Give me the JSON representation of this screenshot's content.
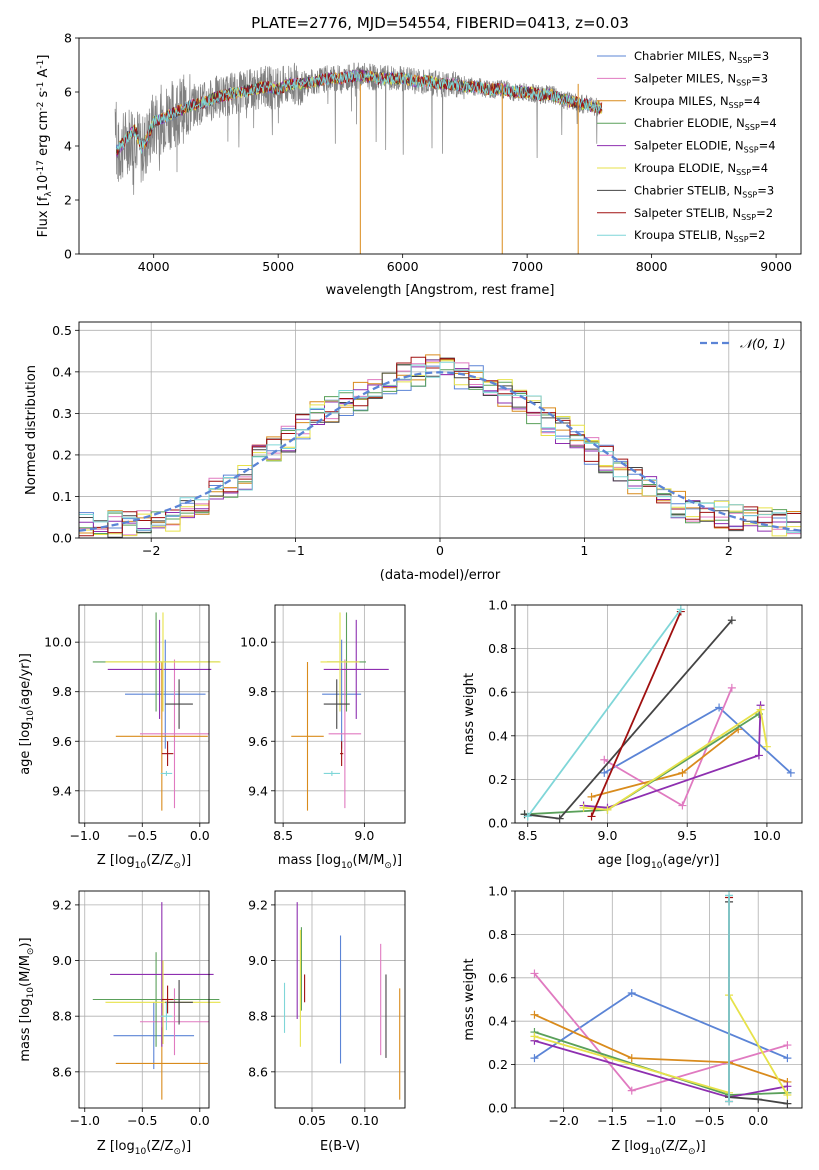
{
  "colors": {
    "Chabrier MILES": "#5b84d6",
    "Salpeter MILES": "#e07ac0",
    "Kroupa MILES": "#d98b1c",
    "Chabrier ELODIE": "#5aa05a",
    "Salpeter ELODIE": "#8e2fb0",
    "Kroupa ELODIE": "#e7e24a",
    "Chabrier STELIB": "#444444",
    "Salpeter STELIB": "#a01010",
    "Kroupa STELIB": "#7fd6d8",
    "gauss": "#5b84d6"
  },
  "chart_data": [
    {
      "id": "spectrum",
      "type": "line",
      "title": "PLATE=2776, MJD=54554, FIBERID=0413, z=0.03",
      "xlabel": "wavelength [Angstrom, rest frame]",
      "ylabel": "Flux [f$_\\lambda$10$^{-17}$ erg cm$^{-2}$ s$^{-1}$ A$^{-1}$]",
      "xlim": [
        3400,
        9200
      ],
      "ylim": [
        0,
        8
      ],
      "xticks": [
        "4000",
        "5000",
        "6000",
        "7000",
        "8000",
        "9000"
      ],
      "yticks": [
        "0",
        "2",
        "4",
        "6",
        "8"
      ],
      "legend_position": "upper-right",
      "legend": [
        {
          "model": "Chabrier MILES",
          "label": "Chabrier MILES, N",
          "sub": "SSP",
          "suffix": "=3"
        },
        {
          "model": "Salpeter MILES",
          "label": "Salpeter MILES, N",
          "sub": "SSP",
          "suffix": "=3"
        },
        {
          "model": "Kroupa MILES",
          "label": "Kroupa MILES, N",
          "sub": "SSP",
          "suffix": "=4"
        },
        {
          "model": "Chabrier ELODIE",
          "label": "Chabrier ELODIE, N",
          "sub": "SSP",
          "suffix": "=4"
        },
        {
          "model": "Salpeter ELODIE",
          "label": "Salpeter ELODIE, N",
          "sub": "SSP",
          "suffix": "=4"
        },
        {
          "model": "Kroupa ELODIE",
          "label": "Kroupa ELODIE, N",
          "sub": "SSP",
          "suffix": "=4"
        },
        {
          "model": "Chabrier STELIB",
          "label": "Chabrier STELIB, N",
          "sub": "SSP",
          "suffix": "=3"
        },
        {
          "model": "Salpeter STELIB",
          "label": "Salpeter STELIB, N",
          "sub": "SSP",
          "suffix": "=2"
        },
        {
          "model": "Kroupa STELIB",
          "label": "Kroupa STELIB, N",
          "sub": "SSP",
          "suffix": "=2"
        }
      ],
      "data_color": "#808080",
      "data": {
        "x": [
          3700,
          3750,
          3800,
          3850,
          3900,
          3950,
          4000,
          4100,
          4200,
          4300,
          4400,
          4500,
          4600,
          4700,
          4800,
          4900,
          5000,
          5100,
          5200,
          5300,
          5400,
          5500,
          5600,
          5700,
          5800,
          5900,
          6000,
          6100,
          6200,
          6300,
          6400,
          6500,
          6600,
          6700,
          6800,
          6900,
          7000,
          7100,
          7200,
          7300,
          7400,
          7500,
          7600
        ],
        "y": [
          3.5,
          4.0,
          4.3,
          4.5,
          3.8,
          4.2,
          4.8,
          5.1,
          5.3,
          5.5,
          5.6,
          5.8,
          5.9,
          6.0,
          6.1,
          6.2,
          6.1,
          6.3,
          6.3,
          6.4,
          6.5,
          6.5,
          6.6,
          6.6,
          6.5,
          6.5,
          6.5,
          6.4,
          6.4,
          6.3,
          6.3,
          6.2,
          6.2,
          6.1,
          6.1,
          6.0,
          6.0,
          5.9,
          5.9,
          5.7,
          5.6,
          5.5,
          5.4
        ]
      },
      "model_curve": {
        "x": [
          3700,
          3750,
          3800,
          3850,
          3900,
          3950,
          4000,
          4100,
          4200,
          4300,
          4400,
          4500,
          4600,
          4700,
          4800,
          4900,
          5000,
          5100,
          5200,
          5300,
          5400,
          5500,
          5600,
          5700,
          5800,
          5900,
          6000,
          6100,
          6200,
          6300,
          6400,
          6500,
          6600,
          6700,
          6800,
          6900,
          7000,
          7100,
          7200,
          7300,
          7400,
          7500,
          7600
        ],
        "y": [
          3.8,
          4.1,
          4.4,
          4.6,
          3.9,
          4.3,
          4.9,
          5.1,
          5.3,
          5.5,
          5.6,
          5.8,
          5.9,
          6.0,
          6.1,
          6.2,
          6.1,
          6.3,
          6.3,
          6.4,
          6.5,
          6.5,
          6.6,
          6.6,
          6.5,
          6.5,
          6.5,
          6.4,
          6.4,
          6.3,
          6.3,
          6.2,
          6.2,
          6.1,
          6.1,
          6.0,
          6.0,
          5.9,
          5.9,
          5.7,
          5.6,
          5.5,
          5.4
        ]
      }
    },
    {
      "id": "residuals",
      "type": "step",
      "xlabel": "(data-model)/error",
      "ylabel": "Normed distribution",
      "xlim": [
        -2.5,
        2.5
      ],
      "ylim": [
        0,
        0.52
      ],
      "xticks": [
        "−2",
        "−1",
        "0",
        "1",
        "2"
      ],
      "yticks": [
        "0.0",
        "0.1",
        "0.2",
        "0.3",
        "0.4",
        "0.5"
      ],
      "legend_position": "upper-right",
      "gauss_label": "𝒩(0, 1)",
      "bins_start": -2.5,
      "bin_width": 0.1,
      "hist": [
        0.03,
        0.025,
        0.035,
        0.03,
        0.04,
        0.045,
        0.05,
        0.08,
        0.09,
        0.11,
        0.13,
        0.15,
        0.2,
        0.22,
        0.24,
        0.27,
        0.3,
        0.31,
        0.33,
        0.34,
        0.37,
        0.38,
        0.39,
        0.4,
        0.41,
        0.4,
        0.39,
        0.38,
        0.37,
        0.35,
        0.33,
        0.31,
        0.28,
        0.26,
        0.24,
        0.21,
        0.19,
        0.17,
        0.14,
        0.12,
        0.1,
        0.08,
        0.07,
        0.06,
        0.055,
        0.05,
        0.045,
        0.04,
        0.035,
        0.03
      ]
    },
    {
      "id": "age_Z",
      "type": "errorbar",
      "xlabel": "Z [log$_{10}$($Z/Z_\\odot$)]",
      "ylabel": "age  [log$_{10}$($age/yr$)]",
      "xlim": [
        -1.05,
        0.08
      ],
      "ylim": [
        9.27,
        10.15
      ],
      "xticks": [
        "−1.0",
        "−0.5",
        "0.0"
      ],
      "yticks": [
        "9.4",
        "9.6",
        "9.8",
        "10.0"
      ],
      "points": [
        {
          "model": "Chabrier MILES",
          "x": -0.3,
          "y": 9.79,
          "xerr": 0.35,
          "yerr": 0.22
        },
        {
          "model": "Salpeter MILES",
          "x": -0.22,
          "y": 9.63,
          "xerr": 0.3,
          "yerr": 0.3
        },
        {
          "model": "Kroupa MILES",
          "x": -0.33,
          "y": 9.62,
          "xerr": 0.4,
          "yerr": 0.3
        },
        {
          "model": "Chabrier ELODIE",
          "x": -0.38,
          "y": 9.92,
          "xerr": 0.55,
          "yerr": 0.2
        },
        {
          "model": "Salpeter ELODIE",
          "x": -0.35,
          "y": 9.89,
          "xerr": 0.45,
          "yerr": 0.2
        },
        {
          "model": "Kroupa ELODIE",
          "x": -0.32,
          "y": 9.92,
          "xerr": 0.5,
          "yerr": 0.2
        },
        {
          "model": "Chabrier STELIB",
          "x": -0.18,
          "y": 9.75,
          "xerr": 0.12,
          "yerr": 0.1
        },
        {
          "model": "Salpeter STELIB",
          "x": -0.28,
          "y": 9.55,
          "xerr": 0.05,
          "yerr": 0.05
        },
        {
          "model": "Kroupa STELIB",
          "x": -0.29,
          "y": 9.47,
          "xerr": 0.05,
          "yerr": 0.01
        }
      ]
    },
    {
      "id": "age_mass",
      "type": "errorbar",
      "xlabel": "mass [log$_{10}$($M/M_\\odot$)]",
      "ylabel": "",
      "xlim": [
        8.45,
        9.25
      ],
      "ylim": [
        9.27,
        10.15
      ],
      "xticks": [
        "8.5",
        "9.0"
      ],
      "yticks": [
        "9.4",
        "9.6",
        "9.8",
        "10.0"
      ],
      "points": [
        {
          "model": "Chabrier MILES",
          "x": 8.86,
          "y": 9.79,
          "xerr": 0.12,
          "yerr": 0.22
        },
        {
          "model": "Salpeter MILES",
          "x": 8.88,
          "y": 9.63,
          "xerr": 0.1,
          "yerr": 0.3
        },
        {
          "model": "Kroupa MILES",
          "x": 8.65,
          "y": 9.62,
          "xerr": 0.1,
          "yerr": 0.3
        },
        {
          "model": "Chabrier ELODIE",
          "x": 8.89,
          "y": 9.92,
          "xerr": 0.12,
          "yerr": 0.2
        },
        {
          "model": "Salpeter ELODIE",
          "x": 8.95,
          "y": 9.89,
          "xerr": 0.2,
          "yerr": 0.2
        },
        {
          "model": "Kroupa ELODIE",
          "x": 8.85,
          "y": 9.92,
          "xerr": 0.12,
          "yerr": 0.2
        },
        {
          "model": "Chabrier STELIB",
          "x": 8.83,
          "y": 9.75,
          "xerr": 0.08,
          "yerr": 0.1
        },
        {
          "model": "Salpeter STELIB",
          "x": 8.86,
          "y": 9.55,
          "xerr": 0.01,
          "yerr": 0.05
        },
        {
          "model": "Kroupa STELIB",
          "x": 8.8,
          "y": 9.47,
          "xerr": 0.05,
          "yerr": 0.01
        }
      ]
    },
    {
      "id": "weight_age",
      "type": "line",
      "xlabel": "age  [log$_{10}$($age/yr$)]",
      "ylabel": "mass weight",
      "xlim": [
        8.42,
        10.22
      ],
      "ylim": [
        0,
        1
      ],
      "xticks": [
        "8.5",
        "9.0",
        "9.5",
        "10.0"
      ],
      "yticks": [
        "0.0",
        "0.2",
        "0.4",
        "0.6",
        "0.8",
        "1.0"
      ],
      "series": [
        {
          "model": "Chabrier MILES",
          "x": [
            8.98,
            9.7,
            10.15
          ],
          "y": [
            0.23,
            0.53,
            0.23
          ]
        },
        {
          "model": "Salpeter MILES",
          "x": [
            8.98,
            9.47,
            9.78
          ],
          "y": [
            0.29,
            0.08,
            0.62
          ]
        },
        {
          "model": "Kroupa MILES",
          "x": [
            8.9,
            9.47,
            9.82
          ],
          "y": [
            0.12,
            0.23,
            0.43
          ]
        },
        {
          "model": "Chabrier ELODIE",
          "x": [
            8.48,
            9.0,
            9.95
          ],
          "y": [
            0.04,
            0.06,
            0.5
          ]
        },
        {
          "model": "Salpeter ELODIE",
          "x": [
            8.85,
            9.0,
            9.95,
            9.96
          ],
          "y": [
            0.08,
            0.07,
            0.31,
            0.54
          ]
        },
        {
          "model": "Kroupa ELODIE",
          "x": [
            8.85,
            9.0,
            9.96,
            10.0
          ],
          "y": [
            0.07,
            0.06,
            0.52,
            0.35
          ]
        },
        {
          "model": "Chabrier STELIB",
          "x": [
            8.48,
            8.7,
            9.78
          ],
          "y": [
            0.04,
            0.02,
            0.93
          ]
        },
        {
          "model": "Salpeter STELIB",
          "x": [
            8.9,
            9.46
          ],
          "y": [
            0.03,
            0.97
          ]
        },
        {
          "model": "Kroupa STELIB",
          "x": [
            8.5,
            9.46
          ],
          "y": [
            0.03,
            0.98
          ]
        }
      ]
    },
    {
      "id": "mass_Z",
      "type": "errorbar",
      "xlabel": "Z [log$_{10}$($Z/Z_\\odot$)]",
      "ylabel": "mass [log$_{10}$($M/M_\\odot$)]",
      "xlim": [
        -1.05,
        0.08
      ],
      "ylim": [
        8.47,
        9.25
      ],
      "xticks": [
        "−1.0",
        "−0.5",
        "0.0"
      ],
      "yticks": [
        "8.6",
        "8.8",
        "9.0",
        "9.2"
      ],
      "points": [
        {
          "model": "Chabrier MILES",
          "x": -0.4,
          "y": 8.73,
          "xerr": 0.35,
          "yerr": 0.12
        },
        {
          "model": "Salpeter MILES",
          "x": -0.22,
          "y": 8.78,
          "xerr": 0.3,
          "yerr": 0.12
        },
        {
          "model": "Kroupa MILES",
          "x": -0.33,
          "y": 8.63,
          "xerr": 0.4,
          "yerr": 0.13
        },
        {
          "model": "Chabrier ELODIE",
          "x": -0.38,
          "y": 8.86,
          "xerr": 0.55,
          "yerr": 0.17
        },
        {
          "model": "Salpeter ELODIE",
          "x": -0.33,
          "y": 8.95,
          "xerr": 0.45,
          "yerr": 0.26
        },
        {
          "model": "Kroupa ELODIE",
          "x": -0.32,
          "y": 8.85,
          "xerr": 0.5,
          "yerr": 0.15
        },
        {
          "model": "Chabrier STELIB",
          "x": -0.18,
          "y": 8.85,
          "xerr": 0.12,
          "yerr": 0.08
        },
        {
          "model": "Salpeter STELIB",
          "x": -0.28,
          "y": 8.86,
          "xerr": 0.05,
          "yerr": 0.05
        },
        {
          "model": "Kroupa STELIB",
          "x": -0.29,
          "y": 8.8,
          "xerr": 0.05,
          "yerr": 0.05
        }
      ]
    },
    {
      "id": "mass_ebv",
      "type": "errorbar",
      "xlabel": "E(B-V)",
      "ylabel": "",
      "xlim": [
        0.015,
        0.138
      ],
      "ylim": [
        8.47,
        9.25
      ],
      "xticks": [
        "0.05",
        "0.10"
      ],
      "yticks": [
        "8.6",
        "8.8",
        "9.0",
        "9.2"
      ],
      "points": [
        {
          "model": "Chabrier MILES",
          "x": 0.077,
          "y": 8.86,
          "xerr": 0,
          "yerr": 0.23
        },
        {
          "model": "Salpeter MILES",
          "x": 0.115,
          "y": 8.86,
          "xerr": 0,
          "yerr": 0.2
        },
        {
          "model": "Kroupa MILES",
          "x": 0.133,
          "y": 8.7,
          "xerr": 0,
          "yerr": 0.2
        },
        {
          "model": "Chabrier ELODIE",
          "x": 0.04,
          "y": 8.97,
          "xerr": 0,
          "yerr": 0.15
        },
        {
          "model": "Salpeter ELODIE",
          "x": 0.036,
          "y": 9.0,
          "xerr": 0,
          "yerr": 0.21
        },
        {
          "model": "Kroupa ELODIE",
          "x": 0.039,
          "y": 8.9,
          "xerr": 0,
          "yerr": 0.21
        },
        {
          "model": "Chabrier STELIB",
          "x": 0.12,
          "y": 8.8,
          "xerr": 0,
          "yerr": 0.15
        },
        {
          "model": "Salpeter STELIB",
          "x": 0.043,
          "y": 8.9,
          "xerr": 0,
          "yerr": 0.05
        },
        {
          "model": "Kroupa STELIB",
          "x": 0.024,
          "y": 8.83,
          "xerr": 0,
          "yerr": 0.09
        }
      ]
    },
    {
      "id": "weight_Z",
      "type": "line",
      "xlabel": "Z [log$_{10}$($Z/Z_\\odot$)]",
      "ylabel": "mass weight",
      "xlim": [
        -2.5,
        0.45
      ],
      "ylim": [
        0,
        1
      ],
      "xticks": [
        "−2.0",
        "−1.5",
        "−1.0",
        "−0.5",
        "0.0"
      ],
      "yticks": [
        "0.0",
        "0.2",
        "0.4",
        "0.6",
        "0.8",
        "1.0"
      ],
      "series": [
        {
          "model": "Chabrier MILES",
          "x": [
            -2.3,
            -1.3,
            0.3
          ],
          "y": [
            0.23,
            0.53,
            0.23
          ]
        },
        {
          "model": "Salpeter MILES",
          "x": [
            -2.3,
            -1.3,
            0.3
          ],
          "y": [
            0.62,
            0.08,
            0.29
          ]
        },
        {
          "model": "Kroupa MILES",
          "x": [
            -2.3,
            -1.3,
            -0.3,
            0.3
          ],
          "y": [
            0.43,
            0.23,
            0.21,
            0.12
          ]
        },
        {
          "model": "Chabrier ELODIE",
          "x": [
            -2.3,
            -0.3,
            0.3
          ],
          "y": [
            0.35,
            0.06,
            0.07
          ]
        },
        {
          "model": "Salpeter ELODIE",
          "x": [
            -2.3,
            -0.3,
            0.3
          ],
          "y": [
            0.31,
            0.05,
            0.1
          ]
        },
        {
          "model": "Kroupa ELODIE",
          "x": [
            -2.3,
            -0.3,
            -0.3,
            0.3
          ],
          "y": [
            0.33,
            0.07,
            0.52,
            0.06
          ]
        },
        {
          "model": "Chabrier STELIB",
          "x": [
            -0.3,
            -0.3,
            0.0,
            0.3
          ],
          "y": [
            0.95,
            0.05,
            0.04,
            0.02
          ]
        },
        {
          "model": "Salpeter STELIB",
          "x": [
            -0.3,
            -0.3
          ],
          "y": [
            0.97,
            0.03
          ]
        },
        {
          "model": "Kroupa STELIB",
          "x": [
            -0.3,
            -0.3
          ],
          "y": [
            0.98,
            0.03
          ]
        }
      ]
    }
  ]
}
